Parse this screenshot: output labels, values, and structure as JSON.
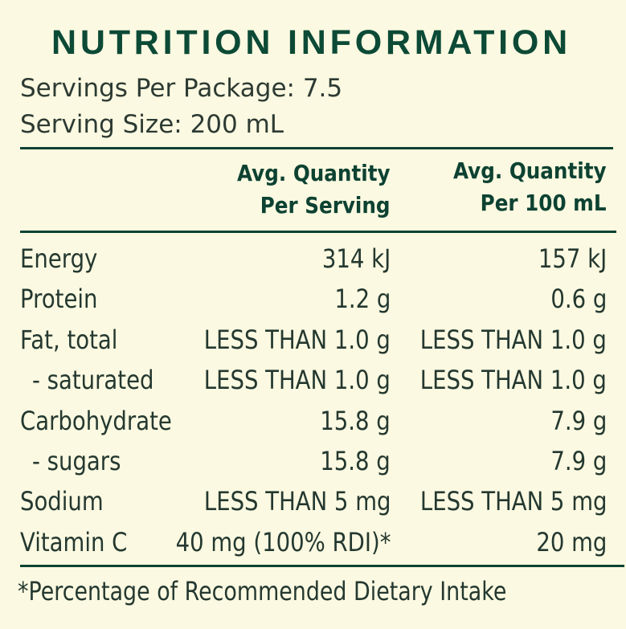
{
  "panel": {
    "title": "NUTRITION INFORMATION",
    "servings_per_package": "Servings Per Package: 7.5",
    "serving_size": "Serving Size: 200 mL"
  },
  "table": {
    "headers": {
      "per_serving_line1": "Avg. Quantity",
      "per_serving_line2": "Per Serving",
      "per_100_line1": "Avg. Quantity",
      "per_100_line2": "Per 100 mL"
    },
    "rows": [
      {
        "name": "Energy",
        "per_serving": "314 kJ",
        "per_100": "157 kJ",
        "sub": false
      },
      {
        "name": "Protein",
        "per_serving": "1.2 g",
        "per_100": "0.6 g",
        "sub": false
      },
      {
        "name": "Fat, total",
        "per_serving": "LESS THAN 1.0 g",
        "per_100": "LESS THAN 1.0 g",
        "sub": false
      },
      {
        "name": "- saturated",
        "per_serving": "LESS THAN 1.0 g",
        "per_100": "LESS THAN 1.0 g",
        "sub": true
      },
      {
        "name": "Carbohydrate",
        "per_serving": "15.8 g",
        "per_100": "7.9 g",
        "sub": false
      },
      {
        "name": "- sugars",
        "per_serving": "15.8 g",
        "per_100": "7.9 g",
        "sub": true
      },
      {
        "name": "Sodium",
        "per_serving": "LESS THAN 5 mg",
        "per_100": "LESS THAN 5 mg",
        "sub": false
      },
      {
        "name": "Vitamin C",
        "per_serving": "40 mg (100% RDI)*",
        "per_100": "20 mg",
        "sub": false
      }
    ]
  },
  "footnote": "*Percentage of Recommended Dietary Intake",
  "colors": {
    "background": "#fbf9e1",
    "title": "#0c4a36",
    "text": "#243830",
    "rules": "#0d4232"
  }
}
